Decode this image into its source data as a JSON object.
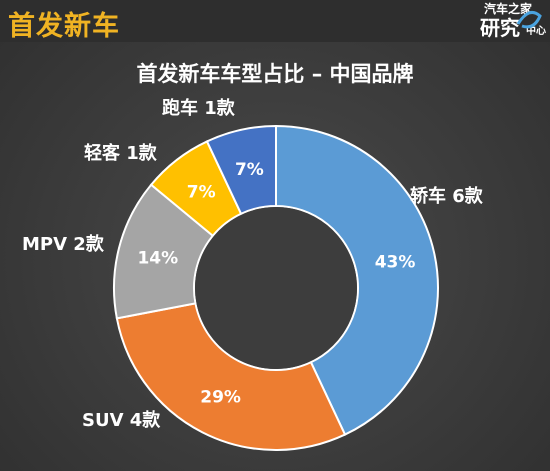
{
  "header": {
    "title": "首发新车"
  },
  "logo": {
    "top": "汽车之家",
    "main": "研究",
    "sub": "中心"
  },
  "chart_data": {
    "type": "pie",
    "title": "首发新车车型占比 – 中国品牌",
    "categories": [
      "轿车 6款",
      "SUV 4款",
      "MPV 2款",
      "轻客 1款",
      "跑车 1款"
    ],
    "values": [
      43,
      29,
      14,
      7,
      7
    ],
    "value_labels": [
      "43%",
      "29%",
      "14%",
      "7%",
      "7%"
    ],
    "colors": [
      "#5b9bd5",
      "#ed7d31",
      "#a5a5a5",
      "#ffc000",
      "#4472c4"
    ],
    "donut": true,
    "start_angle_deg": 0,
    "direction": "clockwise"
  }
}
